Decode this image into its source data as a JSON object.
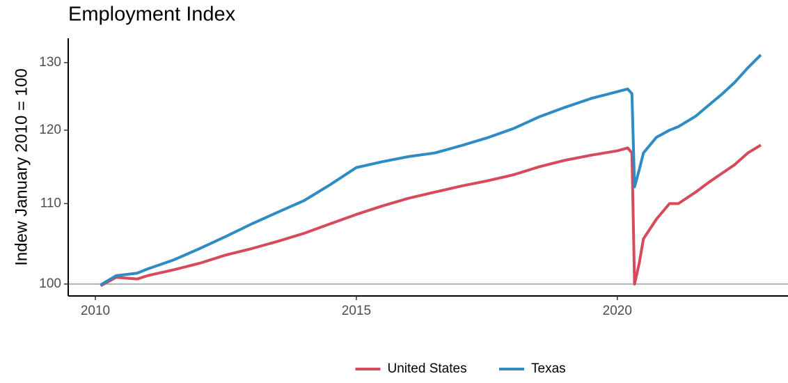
{
  "chart_data": {
    "type": "line",
    "title": "Employment Index",
    "y_label": "Indew January 2010 = 100",
    "x": [
      2010.1,
      2010.4,
      2010.8,
      2011.0,
      2011.5,
      2012.0,
      2012.5,
      2013.0,
      2013.5,
      2014.0,
      2014.5,
      2015.0,
      2015.5,
      2016.0,
      2016.5,
      2017.0,
      2017.5,
      2018.0,
      2018.5,
      2019.0,
      2019.5,
      2020.0,
      2020.2,
      2020.28,
      2020.33,
      2020.42,
      2020.5,
      2020.75,
      2021.0,
      2021.17,
      2021.5,
      2021.75,
      2022.0,
      2022.25,
      2022.5,
      2022.75
    ],
    "series": [
      {
        "name": "United States",
        "color": "#d64a5b",
        "values": [
          99.8,
          100.8,
          100.6,
          101.0,
          101.7,
          102.5,
          103.5,
          104.3,
          105.2,
          106.2,
          107.4,
          108.6,
          109.7,
          110.7,
          111.5,
          112.3,
          113.0,
          113.8,
          114.9,
          115.8,
          116.5,
          117.1,
          117.5,
          116.8,
          100.0,
          102.5,
          105.5,
          108.0,
          110.0,
          110.0,
          111.5,
          112.8,
          114.0,
          115.2,
          116.8,
          117.9
        ]
      },
      {
        "name": "Texas",
        "color": "#2e8bc4",
        "values": [
          99.9,
          101.0,
          101.3,
          101.8,
          102.9,
          104.3,
          105.8,
          107.4,
          108.9,
          110.4,
          112.5,
          114.8,
          115.6,
          116.3,
          116.8,
          117.8,
          118.9,
          120.2,
          121.9,
          123.3,
          124.6,
          125.6,
          126.0,
          125.3,
          112.2,
          114.5,
          116.8,
          119.0,
          120.0,
          120.5,
          122.0,
          123.6,
          125.2,
          127.0,
          129.2,
          131.2
        ]
      }
    ],
    "xlim": [
      2009.48,
      2023.27
    ],
    "xticks": [
      2010,
      2015,
      2020
    ],
    "ylim": [
      98.6,
      133.8
    ],
    "yticks": [
      100,
      110,
      120,
      130
    ],
    "log_y": true,
    "reference_line": 100,
    "legend": "bottom"
  }
}
